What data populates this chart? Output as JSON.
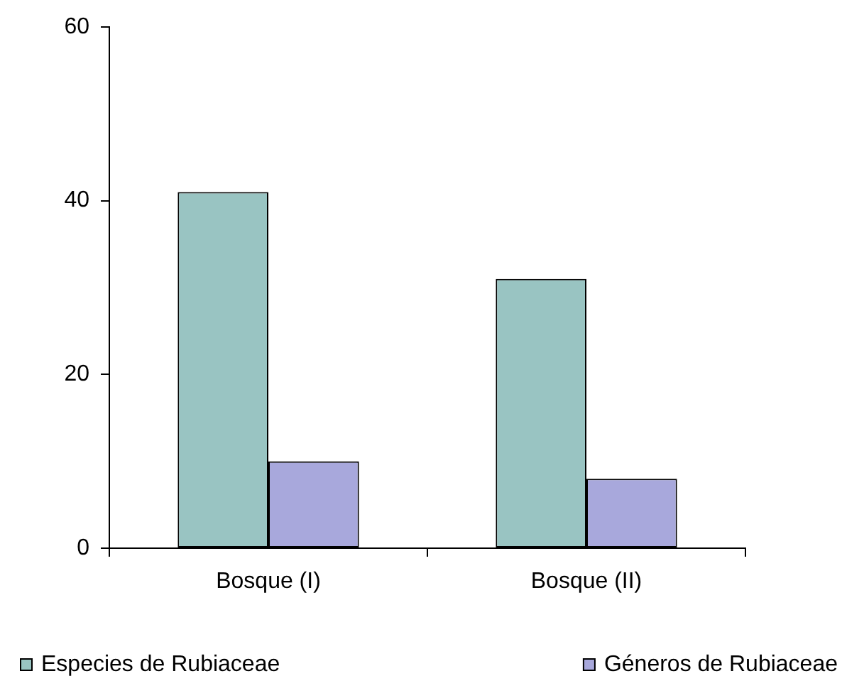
{
  "chart_data": {
    "type": "bar",
    "categories": [
      "Bosque (I)",
      "Bosque (II)"
    ],
    "series": [
      {
        "name": "Especies de Rubiaceae",
        "color": "#99c4c2",
        "values": [
          41,
          31
        ]
      },
      {
        "name": "Géneros de Rubiaceae",
        "color": "#a8a8dc",
        "values": [
          10,
          8
        ]
      }
    ],
    "ylim": [
      0,
      60
    ],
    "yticks": [
      0,
      20,
      40,
      60
    ],
    "grid": false,
    "legend": "bottom"
  }
}
